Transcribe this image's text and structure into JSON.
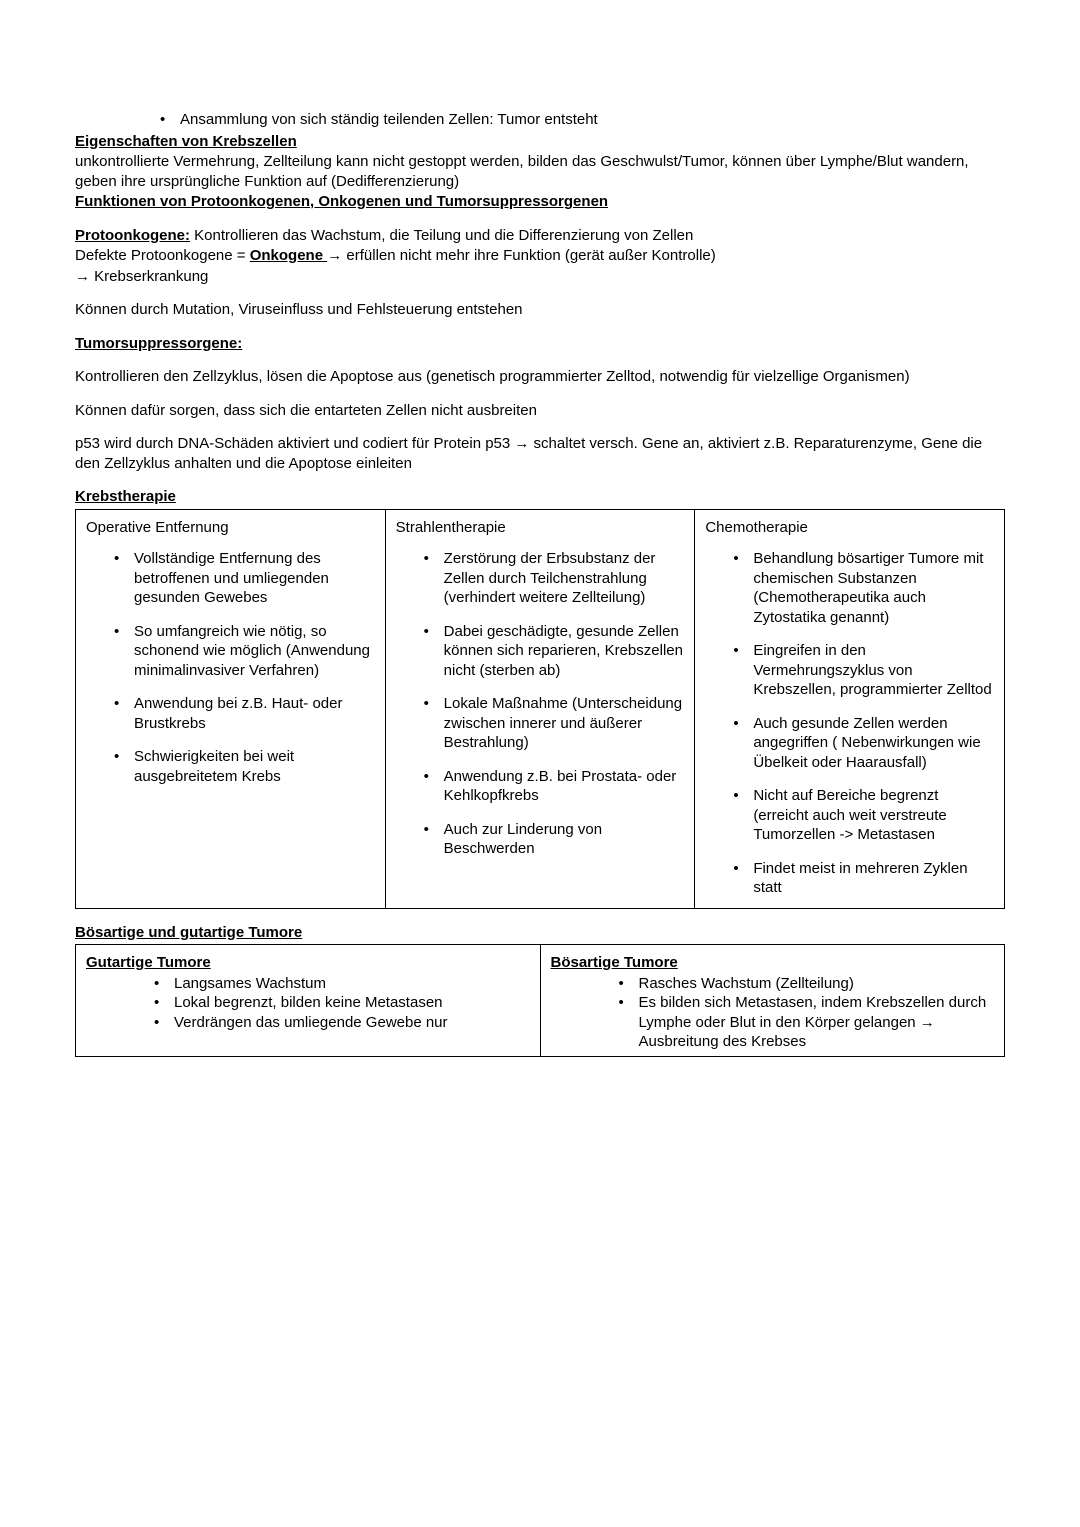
{
  "topBullet": "Ansammlung von sich ständig teilenden Zellen: Tumor entsteht",
  "h1": "Eigenschaften von Krebszellen",
  "p1": "unkontrollierte Vermehrung, Zellteilung kann nicht gestoppt werden, bilden das Geschwulst/Tumor, können über Lymphe/Blut wandern, geben ihre ursprüngliche Funktion auf (Dedifferenzierung)",
  "h2": "Funktionen von Protoonkogenen, Onkogenen und Tumorsuppressorgenen",
  "proto_label": "Protoonkogene:",
  "proto_text": " Kontrollieren das Wachstum, die Teilung und die Differenzierung von Zellen",
  "defekte_pre": "Defekte Protoonkogene = ",
  "onko_label": "Onkogene ",
  "defekte_post": " → erfüllen nicht mehr ihre Funktion (gerät außer Kontrolle)",
  "krebs_line": "→ Krebserkrankung",
  "p_mutation": "Können durch Mutation, Viruseinfluss und Fehlsteuerung entstehen",
  "h_tumor": "Tumorsuppressorgene:",
  "p_zyklus": "Kontrollieren den Zellzyklus, lösen die Apoptose aus (genetisch programmierter Zelltod, notwendig für vielzellige Organismen)",
  "p_ausbreiten": "Können dafür sorgen, dass sich die entarteten Zellen nicht ausbreiten",
  "p_p53": "p53 wird durch DNA-Schäden aktiviert und codiert für Protein p53  → schaltet versch. Gene an, aktiviert z.B. Reparaturenzyme, Gene die den Zellzyklus anhalten und die Apoptose einleiten",
  "h_therapie": "Krebstherapie",
  "therapy": {
    "col1_title": "Operative Entfernung",
    "col1_items": [
      "Vollständige Entfernung des betroffenen und umliegenden gesunden Gewebes",
      "So umfangreich wie nötig, so schonend wie möglich (Anwendung minimalinvasiver Verfahren)",
      "Anwendung bei z.B. Haut- oder Brustkrebs",
      "Schwierigkeiten bei weit ausgebreitetem Krebs"
    ],
    "col2_title": "Strahlentherapie",
    "col2_items": [
      "Zerstörung der Erbsubstanz der Zellen durch Teilchenstrahlung (verhindert weitere Zellteilung)",
      "Dabei geschädigte, gesunde Zellen können sich reparieren, Krebszellen nicht (sterben ab)",
      "Lokale Maßnahme (Unterscheidung zwischen innerer und äußerer Bestrahlung)",
      "Anwendung z.B. bei Prostata- oder Kehlkopfkrebs",
      "Auch zur Linderung von Beschwerden"
    ],
    "col3_title": "Chemotherapie",
    "col3_items": [
      "Behandlung bösartiger Tumore mit chemischen Substanzen (Chemotherapeutika auch Zytostatika genannt)",
      "Eingreifen in den Vermehrungszyklus von Krebszellen, programmierter Zelltod",
      "Auch gesunde Zellen werden angegriffen ( Nebenwirkungen wie Übelkeit oder Haarausfall)",
      "Nicht auf Bereiche begrenzt (erreicht auch weit verstreute Tumorzellen -> Metastasen",
      "Findet meist in mehreren Zyklen statt"
    ]
  },
  "h_tumors": "Bösartige und gutartige Tumore",
  "tumors": {
    "left_title": "Gutartige Tumore",
    "left_items": [
      "Langsames Wachstum",
      "Lokal begrenzt, bilden keine Metastasen",
      "Verdrängen das umliegende Gewebe nur"
    ],
    "right_title": "Bösartige Tumore",
    "right_items": [
      "Rasches Wachstum (Zellteilung)",
      "Es bilden sich Metastasen, indem Krebszellen durch Lymphe oder Blut in den Körper gelangen → Ausbreitung des Krebses"
    ]
  }
}
